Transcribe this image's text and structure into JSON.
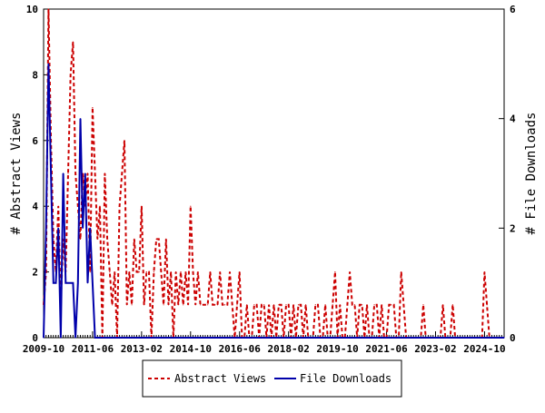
{
  "chart_data": {
    "type": "line",
    "title": "",
    "ylabel_left": "# Abstract Views",
    "ylabel_right": "# File Downloads",
    "ylim_left": [
      0,
      10
    ],
    "ylim_right": [
      0,
      6
    ],
    "yticks_left": [
      "0",
      "2",
      "4",
      "6",
      "8",
      "10"
    ],
    "yticks_right": [
      "0",
      "2",
      "4",
      "6"
    ],
    "xlim": [
      "2009-10",
      "2025-06"
    ],
    "xticks": [
      "2009-10",
      "2011-06",
      "2013-02",
      "2014-10",
      "2016-06",
      "2018-02",
      "2019-10",
      "2021-06",
      "2023-02",
      "2024-10"
    ],
    "legend_position": "bottom-center",
    "series": [
      {
        "name": "Abstract Views",
        "axis": "left",
        "color": "#cc0000",
        "style": "dashed",
        "x": [
          "2009-10",
          "2009-11",
          "2009-12",
          "2010-01",
          "2010-02",
          "2010-03",
          "2010-04",
          "2010-05",
          "2010-06",
          "2010-07",
          "2010-08",
          "2010-09",
          "2010-10",
          "2010-11",
          "2010-12",
          "2011-01",
          "2011-02",
          "2011-03",
          "2011-04",
          "2011-05",
          "2011-06",
          "2011-07",
          "2011-08",
          "2011-09",
          "2011-10",
          "2011-11",
          "2011-12",
          "2012-01",
          "2012-02",
          "2012-03",
          "2012-04",
          "2012-05",
          "2012-06",
          "2012-07",
          "2012-08",
          "2012-09",
          "2012-10",
          "2012-11",
          "2012-12",
          "2013-01",
          "2013-02",
          "2013-03",
          "2013-04",
          "2013-05",
          "2013-06",
          "2013-07",
          "2013-08",
          "2013-09",
          "2013-10",
          "2013-11",
          "2013-12",
          "2014-01",
          "2014-02",
          "2014-03",
          "2014-04",
          "2014-05",
          "2014-06",
          "2014-07",
          "2014-08",
          "2014-09",
          "2014-10",
          "2014-11",
          "2014-12",
          "2015-01",
          "2015-02",
          "2015-03",
          "2015-04",
          "2015-05",
          "2015-06",
          "2015-07",
          "2015-08",
          "2015-09",
          "2015-10",
          "2015-11",
          "2015-12",
          "2016-01",
          "2016-02",
          "2016-03",
          "2016-04",
          "2016-05",
          "2016-06",
          "2016-07",
          "2016-08",
          "2016-09",
          "2016-10",
          "2016-11",
          "2016-12",
          "2017-01",
          "2017-02",
          "2017-03",
          "2017-04",
          "2017-05",
          "2017-06",
          "2017-07",
          "2017-08",
          "2017-09",
          "2017-10",
          "2017-11",
          "2017-12",
          "2018-01",
          "2018-02",
          "2018-03",
          "2018-04",
          "2018-05",
          "2018-06",
          "2018-07",
          "2018-08",
          "2018-09",
          "2018-10",
          "2018-11",
          "2018-12",
          "2019-01",
          "2019-02",
          "2019-03",
          "2019-04",
          "2019-05",
          "2019-06",
          "2019-07",
          "2019-08",
          "2019-09",
          "2019-10",
          "2019-11",
          "2019-12",
          "2020-01",
          "2020-02",
          "2020-03",
          "2020-04",
          "2020-05",
          "2020-06",
          "2020-07",
          "2020-08",
          "2020-09",
          "2020-10",
          "2020-11",
          "2020-12",
          "2021-01",
          "2021-02",
          "2021-03",
          "2021-04",
          "2021-05",
          "2021-06",
          "2021-07",
          "2021-08",
          "2021-09",
          "2021-10",
          "2021-11",
          "2021-12",
          "2022-01",
          "2022-02",
          "2022-03",
          "2022-04",
          "2022-05",
          "2022-06",
          "2022-07",
          "2022-08",
          "2022-09",
          "2022-10",
          "2022-11",
          "2022-12",
          "2023-01",
          "2023-02",
          "2023-03",
          "2023-04",
          "2023-05",
          "2023-06",
          "2023-07",
          "2023-08",
          "2023-09",
          "2023-10",
          "2023-11",
          "2023-12",
          "2024-01",
          "2024-02",
          "2024-03",
          "2024-04",
          "2024-05",
          "2024-06",
          "2024-07",
          "2024-08",
          "2024-09",
          "2024-10",
          "2024-11",
          "2024-12",
          "2025-01",
          "2025-02",
          "2025-03",
          "2025-04",
          "2025-05",
          "2025-06"
        ],
        "values": [
          1,
          2,
          10,
          6,
          3,
          2,
          4,
          1,
          3,
          2,
          5,
          8,
          9,
          5,
          4,
          3,
          5,
          4,
          5,
          2,
          7,
          5,
          3,
          4,
          0,
          5,
          3,
          2,
          1,
          2,
          0,
          4,
          5,
          6,
          1,
          2,
          1,
          3,
          2,
          2,
          4,
          1,
          2,
          2,
          0,
          2,
          3,
          3,
          2,
          1,
          3,
          1,
          2,
          0,
          2,
          1,
          2,
          1,
          2,
          1,
          4,
          2,
          1,
          2,
          1,
          1,
          1,
          1,
          2,
          1,
          1,
          1,
          2,
          1,
          1,
          1,
          2,
          1,
          0,
          1,
          2,
          0,
          0,
          1,
          0,
          0,
          1,
          1,
          0,
          1,
          1,
          0,
          1,
          0,
          1,
          0,
          1,
          1,
          0,
          1,
          1,
          0,
          1,
          0,
          1,
          1,
          0,
          1,
          0,
          0,
          0,
          1,
          1,
          0,
          0,
          1,
          0,
          0,
          1,
          2,
          0,
          1,
          0,
          0,
          1,
          2,
          1,
          1,
          0,
          1,
          1,
          0,
          1,
          0,
          0,
          1,
          1,
          0,
          1,
          0,
          0,
          1,
          1,
          1,
          0,
          0,
          2,
          1,
          0,
          0,
          0,
          0,
          0,
          0,
          0,
          1,
          0,
          0,
          0,
          0,
          0,
          0,
          0,
          1,
          0,
          0,
          0,
          1,
          0,
          0,
          0,
          0,
          0,
          0,
          0,
          0,
          0,
          0,
          0,
          0,
          2,
          1,
          0,
          0,
          0,
          0,
          0,
          0,
          0
        ]
      },
      {
        "name": "File Downloads",
        "axis": "right",
        "color": "#0000aa",
        "style": "solid",
        "x": [
          "2009-10",
          "2009-11",
          "2009-12",
          "2010-01",
          "2010-02",
          "2010-03",
          "2010-04",
          "2010-05",
          "2010-06",
          "2010-07",
          "2010-08",
          "2010-09",
          "2010-10",
          "2010-11",
          "2010-12",
          "2011-01",
          "2011-02",
          "2011-03",
          "2011-04",
          "2011-05",
          "2011-06",
          "2011-07",
          "2011-08",
          "2011-09",
          "2011-10",
          "2011-11",
          "2011-12",
          "2012-01",
          "2012-02",
          "2012-03",
          "2012-04",
          "2012-05",
          "2012-06",
          "2012-07",
          "2012-08",
          "2012-09",
          "2012-10",
          "2012-11",
          "2012-12",
          "2013-01",
          "2013-02",
          "2013-03",
          "2013-04",
          "2013-05",
          "2013-06",
          "2013-07",
          "2013-08",
          "2013-09",
          "2013-10",
          "2013-11",
          "2013-12",
          "2014-01",
          "2014-02",
          "2014-03",
          "2014-04",
          "2014-05",
          "2014-06",
          "2014-07",
          "2014-08",
          "2014-09",
          "2014-10",
          "2014-11",
          "2014-12",
          "2015-01",
          "2015-02",
          "2015-03",
          "2015-04",
          "2015-05",
          "2015-06",
          "2015-07",
          "2015-08",
          "2015-09",
          "2015-10",
          "2015-11",
          "2015-12",
          "2016-01",
          "2016-02",
          "2016-03",
          "2016-04",
          "2016-05",
          "2016-06",
          "2016-07",
          "2016-08",
          "2016-09",
          "2016-10",
          "2016-11",
          "2016-12",
          "2017-01",
          "2017-02",
          "2017-03",
          "2017-04",
          "2017-05",
          "2017-06",
          "2017-07",
          "2017-08",
          "2017-09",
          "2017-10",
          "2017-11",
          "2017-12",
          "2018-01",
          "2018-02",
          "2018-03",
          "2018-04",
          "2018-05",
          "2018-06",
          "2018-07",
          "2018-08",
          "2018-09",
          "2018-10",
          "2018-11",
          "2018-12",
          "2019-01",
          "2019-02",
          "2019-03",
          "2019-04",
          "2019-05",
          "2019-06",
          "2019-07",
          "2019-08",
          "2019-09",
          "2019-10",
          "2019-11",
          "2019-12",
          "2020-01",
          "2020-02",
          "2020-03",
          "2020-04",
          "2020-05",
          "2020-06",
          "2020-07",
          "2020-08",
          "2020-09",
          "2020-10",
          "2020-11",
          "2020-12",
          "2021-01",
          "2021-02",
          "2021-03",
          "2021-04",
          "2021-05",
          "2021-06",
          "2021-07",
          "2021-08",
          "2021-09",
          "2021-10",
          "2021-11",
          "2021-12",
          "2022-01",
          "2022-02",
          "2022-03",
          "2022-04",
          "2022-05",
          "2022-06",
          "2022-07",
          "2022-08",
          "2022-09",
          "2022-10",
          "2022-11",
          "2022-12",
          "2023-01",
          "2023-02",
          "2023-03",
          "2023-04",
          "2023-05",
          "2023-06",
          "2023-07",
          "2023-08",
          "2023-09",
          "2023-10",
          "2023-11",
          "2023-12",
          "2024-01",
          "2024-02",
          "2024-03",
          "2024-04",
          "2024-05",
          "2024-06",
          "2024-07",
          "2024-08",
          "2024-09",
          "2024-10",
          "2024-11",
          "2024-12",
          "2025-01",
          "2025-02",
          "2025-03",
          "2025-04",
          "2025-05",
          "2025-06"
        ],
        "values": [
          0,
          2,
          5,
          3,
          1,
          1,
          2,
          0,
          3,
          1,
          1,
          1,
          1,
          0,
          1,
          4,
          2,
          3,
          1,
          2,
          1,
          0,
          0,
          0,
          0,
          0,
          0,
          0,
          0,
          0,
          0,
          0,
          0,
          0,
          0,
          0,
          0,
          0,
          0,
          0,
          0,
          0,
          0,
          0,
          0,
          0,
          0,
          0,
          0,
          0,
          0,
          0,
          0,
          0,
          0,
          0,
          0,
          0,
          0,
          0,
          0,
          0,
          0,
          0,
          0,
          0,
          0,
          0,
          0,
          0,
          0,
          0,
          0,
          0,
          0,
          0,
          0,
          0,
          0,
          0,
          0,
          0,
          0,
          0,
          0,
          0,
          0,
          0,
          0,
          0,
          0,
          0,
          0,
          0,
          0,
          0,
          0,
          0,
          0,
          0,
          0,
          0,
          0,
          0,
          0,
          0,
          0,
          0,
          0,
          0,
          0,
          0,
          0,
          0,
          0,
          0,
          0,
          0,
          0,
          0,
          0,
          0,
          0,
          0,
          0,
          0,
          0,
          0,
          0,
          0,
          0,
          0,
          0,
          0,
          0,
          0,
          0,
          0,
          0,
          0,
          0,
          0,
          0,
          0,
          0,
          0,
          0,
          0,
          0,
          0,
          0,
          0,
          0,
          0,
          0,
          0,
          0,
          0,
          0,
          0,
          0,
          0,
          0,
          0,
          0,
          0,
          0,
          0,
          0,
          0,
          0,
          0,
          0,
          0,
          0,
          0,
          0,
          0,
          0,
          0,
          0,
          0,
          0,
          0,
          0,
          0,
          0,
          0,
          0
        ]
      }
    ]
  }
}
